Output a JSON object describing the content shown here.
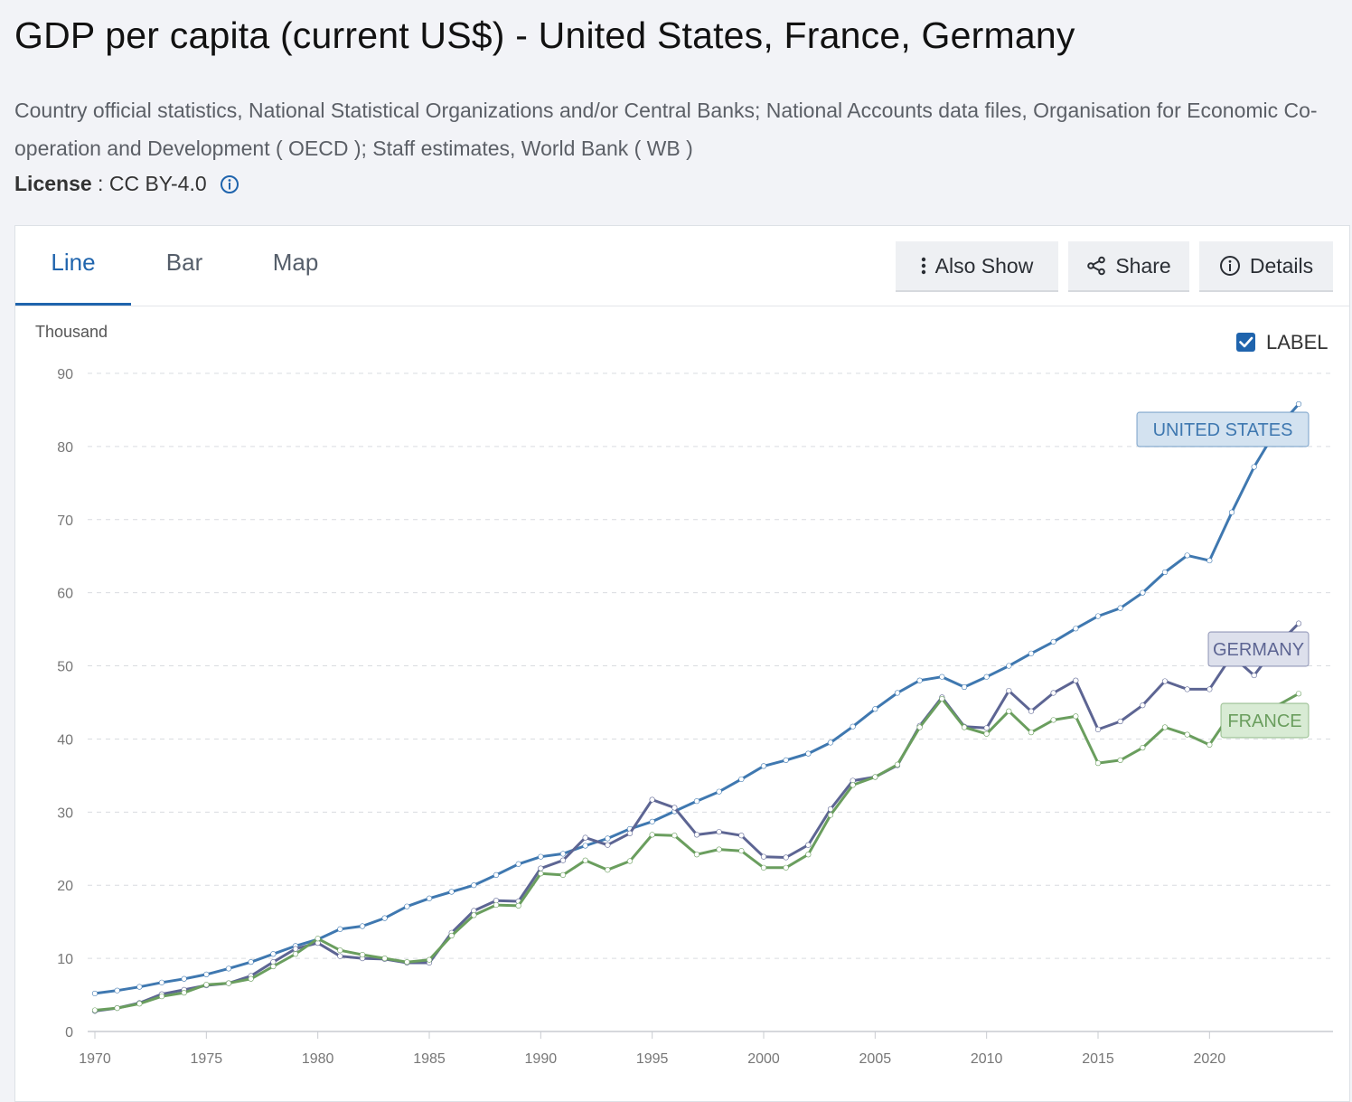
{
  "header": {
    "title": "GDP per capita (current US$) - United States, France, Germany",
    "source": "Country official statistics, National Statistical Organizations and/or Central Banks; National Accounts data files, Organisation for Economic Co-operation and Development ( OECD ); Staff estimates, World Bank ( WB )",
    "license_label": "License",
    "license_sep": " : ",
    "license_value": "CC BY-4.0"
  },
  "tabs": [
    {
      "label": "Line",
      "active": true
    },
    {
      "label": "Bar",
      "active": false
    },
    {
      "label": "Map",
      "active": false
    }
  ],
  "toolbar": {
    "also_show_label": "Also Show",
    "share_label": "Share",
    "details_label": "Details"
  },
  "label_toggle": {
    "label": "LABEL",
    "checked": true
  },
  "colors": {
    "accent": "#1f64ad",
    "united_states": "#3f78b0",
    "germany": "#5d6593",
    "france": "#6a9e5e"
  },
  "chart_data": {
    "type": "line",
    "ylabel": "Thousand",
    "ylim": [
      0,
      90
    ],
    "yticks": [
      0,
      10,
      20,
      30,
      40,
      50,
      60,
      70,
      80,
      90
    ],
    "xlim": [
      1970,
      2024
    ],
    "xticks": [
      1970,
      1975,
      1980,
      1985,
      1990,
      1995,
      2000,
      2005,
      2010,
      2015,
      2020
    ],
    "grid": true,
    "x": [
      1970,
      1971,
      1972,
      1973,
      1974,
      1975,
      1976,
      1977,
      1978,
      1979,
      1980,
      1981,
      1982,
      1983,
      1984,
      1985,
      1986,
      1987,
      1988,
      1989,
      1990,
      1991,
      1992,
      1993,
      1994,
      1995,
      1996,
      1997,
      1998,
      1999,
      2000,
      2001,
      2002,
      2003,
      2004,
      2005,
      2006,
      2007,
      2008,
      2009,
      2010,
      2011,
      2012,
      2013,
      2014,
      2015,
      2016,
      2017,
      2018,
      2019,
      2020,
      2021,
      2022,
      2023,
      2024
    ],
    "series": [
      {
        "name": "United States",
        "label": "UNITED STATES",
        "color_key": "united_states",
        "values": [
          5.2,
          5.6,
          6.1,
          6.7,
          7.2,
          7.8,
          8.6,
          9.5,
          10.6,
          11.7,
          12.6,
          14.0,
          14.4,
          15.5,
          17.1,
          18.2,
          19.1,
          20.0,
          21.4,
          22.9,
          23.9,
          24.3,
          25.4,
          26.4,
          27.7,
          28.7,
          30.1,
          31.5,
          32.8,
          34.5,
          36.3,
          37.1,
          38.0,
          39.5,
          41.7,
          44.1,
          46.3,
          48.0,
          48.5,
          47.1,
          48.5,
          50.0,
          51.7,
          53.3,
          55.1,
          56.8,
          57.9,
          60.0,
          62.8,
          65.1,
          64.4,
          71.0,
          77.2,
          82.3,
          85.8
        ]
      },
      {
        "name": "Germany",
        "label": "GERMANY",
        "color_key": "germany",
        "values": [
          2.8,
          3.2,
          3.9,
          5.1,
          5.7,
          6.3,
          6.6,
          7.6,
          9.5,
          11.3,
          12.1,
          10.3,
          10.0,
          9.9,
          9.4,
          9.4,
          13.5,
          16.5,
          17.9,
          17.8,
          22.3,
          23.4,
          26.5,
          25.5,
          27.1,
          31.7,
          30.6,
          26.9,
          27.3,
          26.8,
          23.9,
          23.8,
          25.5,
          30.4,
          34.3,
          34.8,
          36.4,
          41.8,
          45.7,
          41.7,
          41.5,
          46.6,
          43.8,
          46.3,
          48.0,
          41.3,
          42.4,
          44.6,
          47.9,
          46.8,
          46.8,
          51.4,
          48.7,
          52.7,
          55.8
        ]
      },
      {
        "name": "France",
        "label": "FRANCE",
        "color_key": "france",
        "values": [
          2.9,
          3.2,
          3.8,
          4.8,
          5.3,
          6.4,
          6.6,
          7.2,
          8.9,
          10.6,
          12.7,
          11.1,
          10.5,
          10.0,
          9.5,
          9.8,
          13.1,
          15.9,
          17.3,
          17.2,
          21.6,
          21.4,
          23.4,
          22.1,
          23.3,
          26.9,
          26.8,
          24.2,
          24.9,
          24.7,
          22.4,
          22.4,
          24.2,
          29.6,
          33.7,
          34.8,
          36.5,
          41.6,
          45.5,
          41.6,
          40.7,
          43.8,
          40.9,
          42.6,
          43.1,
          36.7,
          37.1,
          38.8,
          41.6,
          40.6,
          39.2,
          43.7,
          40.9,
          44.5,
          46.2
        ]
      }
    ]
  }
}
